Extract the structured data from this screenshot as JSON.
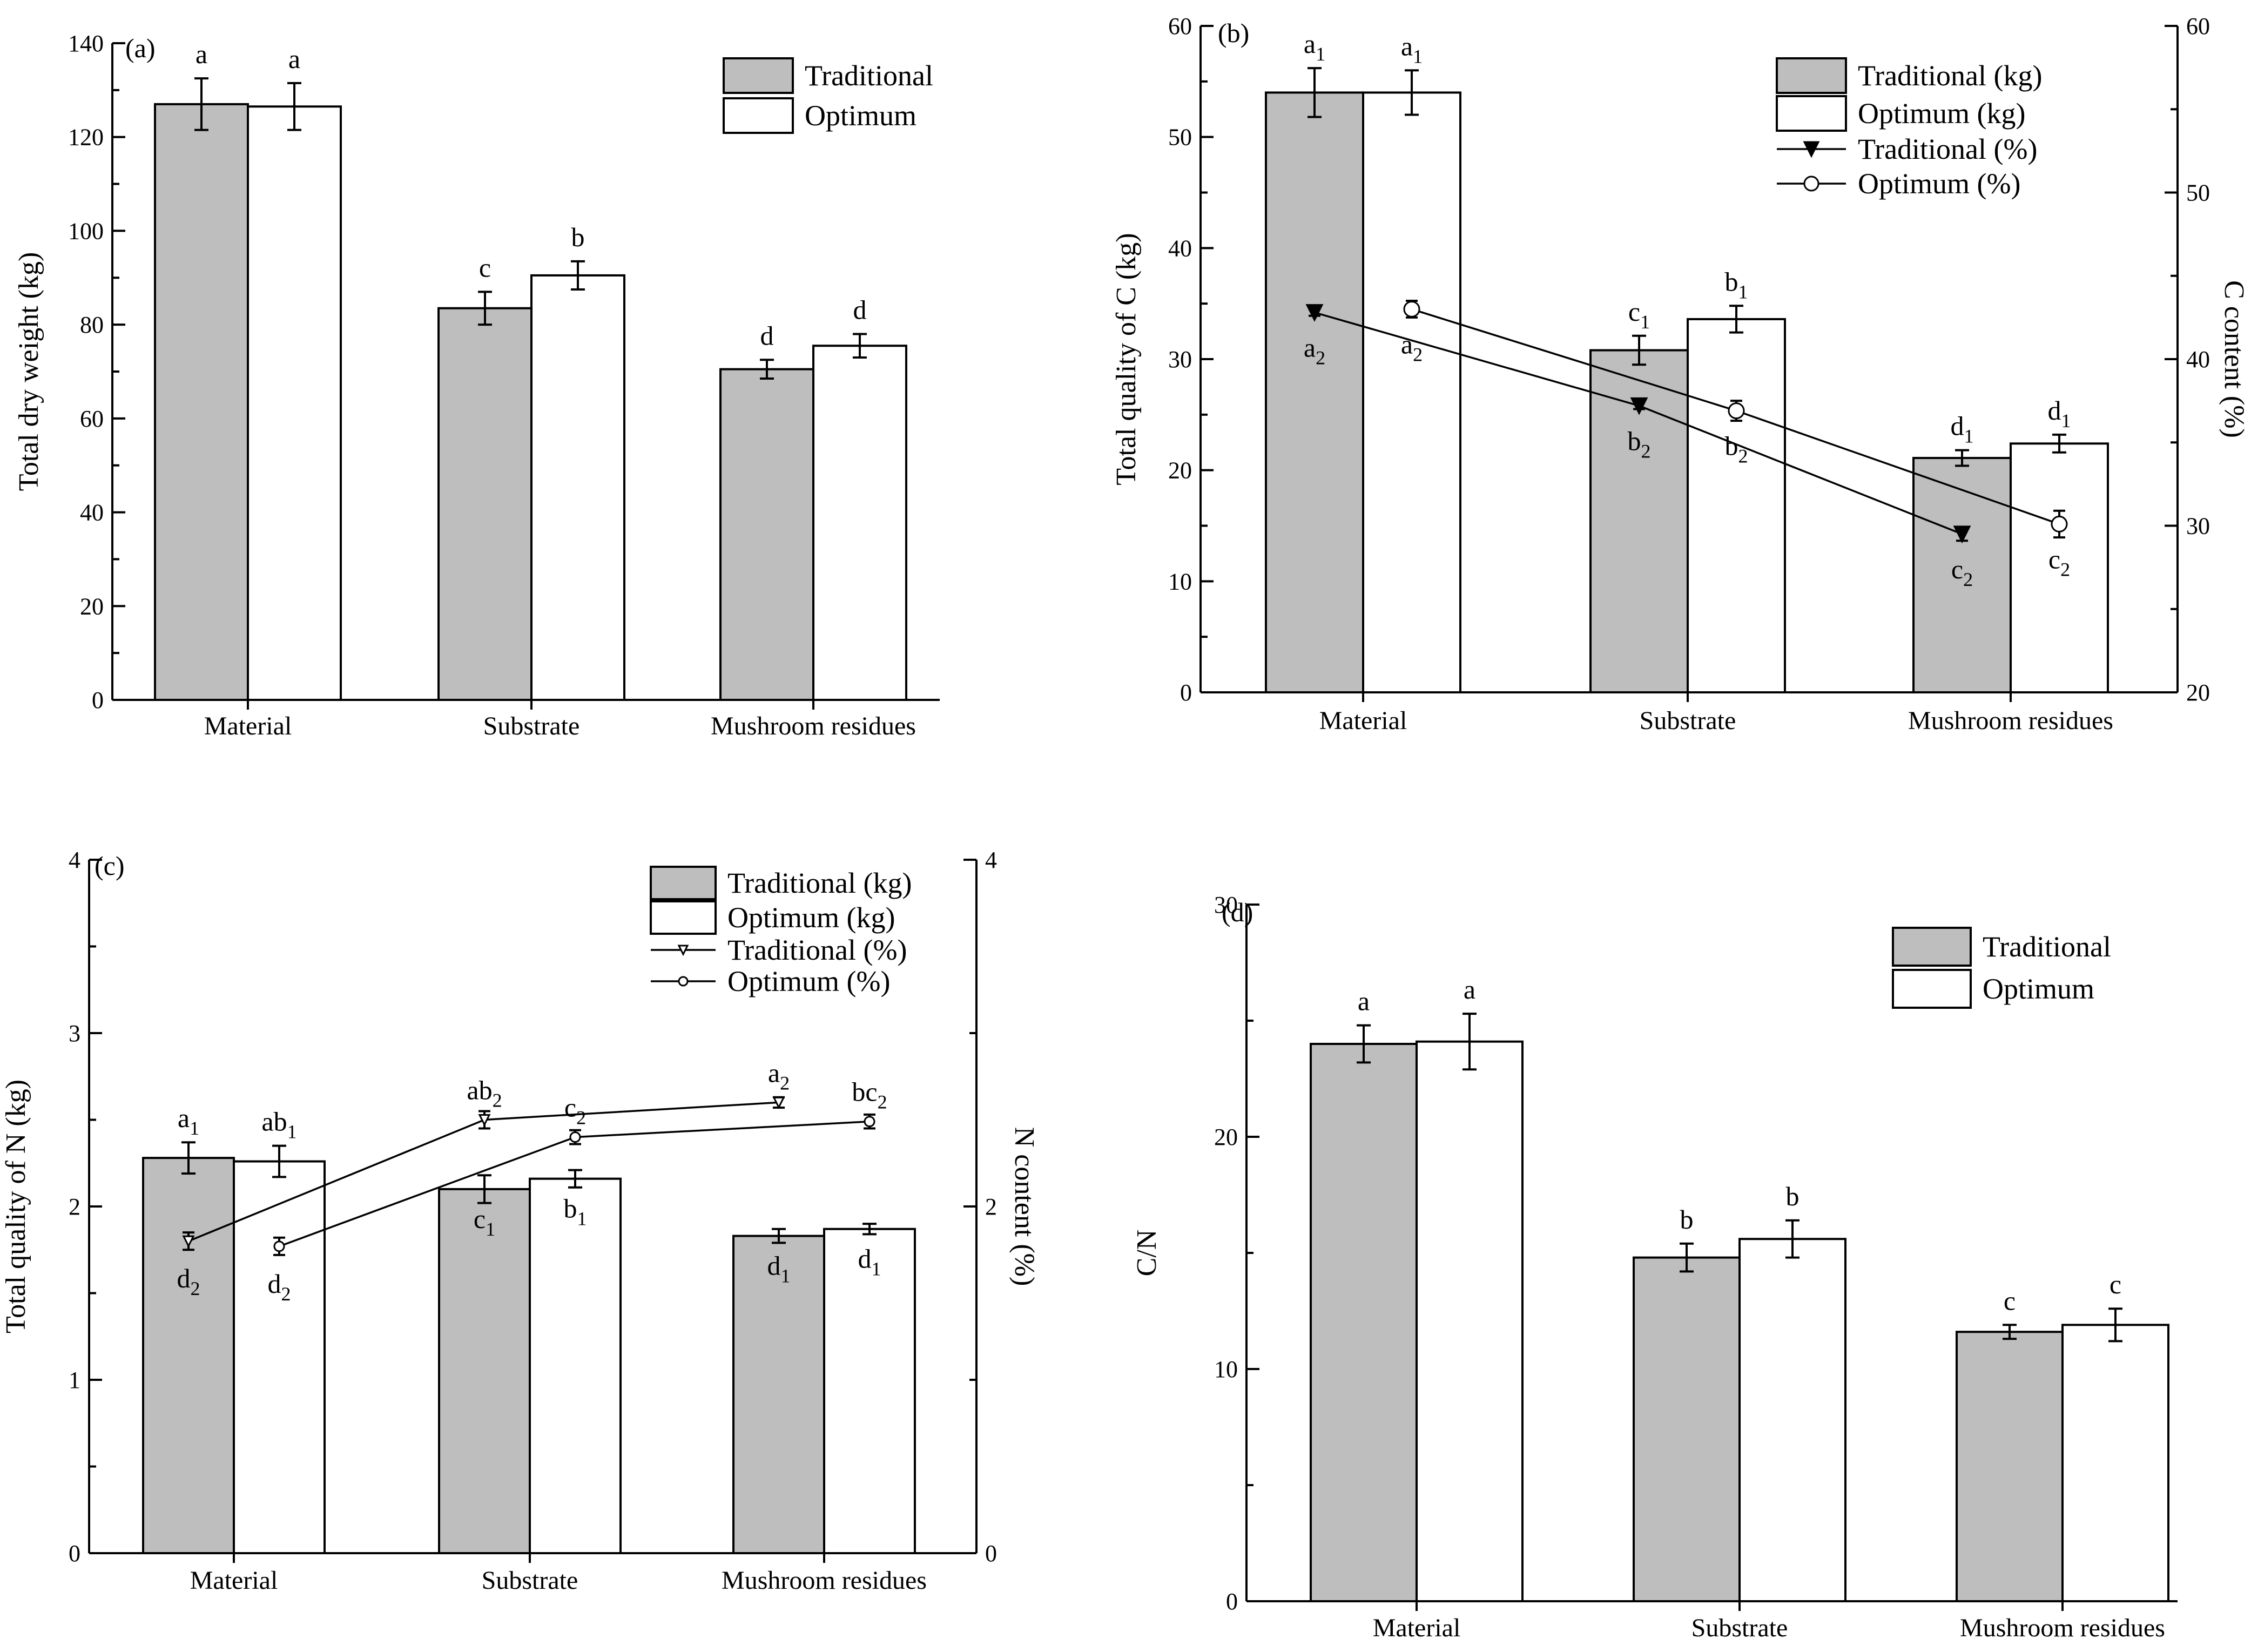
{
  "figure": {
    "colors": {
      "traditional_fill": "#bebebe",
      "optimum_fill": "#ffffff",
      "stroke": "#000000"
    }
  },
  "chart_data": [
    {
      "id": "a",
      "type": "bar",
      "panel_label": "(a)",
      "ylabel": "Total dry weight (kg)",
      "ylim": [
        0,
        140
      ],
      "yticks": [
        0,
        20,
        40,
        60,
        80,
        100,
        120,
        140
      ],
      "categories": [
        "Material",
        "Substrate",
        "Mushroom residues"
      ],
      "legend_position": "top-right",
      "series": [
        {
          "name": "Traditional",
          "fill": "#bebebe",
          "values": [
            127,
            83.5,
            70.5
          ],
          "errors": [
            5.5,
            3.5,
            2.0
          ],
          "labels": [
            "a",
            "c",
            "d"
          ]
        },
        {
          "name": "Optimum",
          "fill": "#ffffff",
          "values": [
            126.5,
            90.5,
            75.5
          ],
          "errors": [
            5.0,
            3.0,
            2.5
          ],
          "labels": [
            "a",
            "b",
            "d"
          ]
        }
      ]
    },
    {
      "id": "b",
      "type": "bar",
      "panel_label": "(b)",
      "ylabel": "Total quality of C (kg)",
      "ylim": [
        0,
        60
      ],
      "yticks": [
        0,
        10,
        20,
        30,
        40,
        50,
        60
      ],
      "y2label": "C content  (%)",
      "y2lim": [
        20,
        60
      ],
      "y2ticks": [
        20,
        30,
        40,
        50,
        60
      ],
      "categories": [
        "Material",
        "Substrate",
        "Mushroom residues"
      ],
      "legend_position": "top-right",
      "series": [
        {
          "name": "Traditional (kg)",
          "fill": "#bebebe",
          "values": [
            54,
            30.8,
            21.1
          ],
          "errors": [
            2.2,
            1.3,
            0.7
          ],
          "labels": [
            [
              "a",
              "1"
            ],
            [
              "c",
              "1"
            ],
            [
              "d",
              "1"
            ]
          ]
        },
        {
          "name": "Optimum (kg)",
          "fill": "#ffffff",
          "values": [
            54,
            33.6,
            22.4
          ],
          "errors": [
            2.0,
            1.2,
            0.8
          ],
          "labels": [
            [
              "a",
              "1"
            ],
            [
              "b",
              "1"
            ],
            [
              "d",
              "1"
            ]
          ]
        }
      ],
      "line_series": [
        {
          "name": "Traditional (%)",
          "marker": "triangle-down-filled",
          "values": [
            42.8,
            37.2,
            29.5
          ],
          "errors": [
            0.2,
            0.2,
            0.4
          ],
          "labels": [
            [
              "a",
              "2"
            ],
            [
              "b",
              "2"
            ],
            [
              "c",
              "2"
            ]
          ]
        },
        {
          "name": "Optimum (%)",
          "marker": "circle-open",
          "values": [
            43.0,
            36.9,
            30.1
          ],
          "errors": [
            0.5,
            0.6,
            0.8
          ],
          "labels": [
            [
              "a",
              "2"
            ],
            [
              "b",
              "2"
            ],
            [
              "c",
              "2"
            ]
          ]
        }
      ]
    },
    {
      "id": "c",
      "type": "bar",
      "panel_label": "(c)",
      "ylabel": "Total quality of N (kg)",
      "ylim": [
        0,
        4
      ],
      "yticks": [
        0,
        1,
        2,
        3,
        4
      ],
      "y2label": "N content (%)",
      "y2lim": [
        0,
        4
      ],
      "y2ticks": [
        0,
        2,
        4
      ],
      "categories": [
        "Material",
        "Substrate",
        "Mushroom residues"
      ],
      "legend_position": "top-right",
      "series": [
        {
          "name": "Traditional (kg)",
          "fill": "#bebebe",
          "values": [
            2.28,
            2.1,
            1.83
          ],
          "errors": [
            0.09,
            0.08,
            0.04
          ],
          "labels": [
            [
              "a",
              "1"
            ],
            [
              "c",
              "1"
            ],
            [
              "d",
              "1"
            ]
          ]
        },
        {
          "name": "Optimum (kg)",
          "fill": "#ffffff",
          "values": [
            2.26,
            2.16,
            1.87
          ],
          "errors": [
            0.09,
            0.05,
            0.03
          ],
          "labels": [
            [
              "ab",
              "1"
            ],
            [
              "b",
              "1"
            ],
            [
              "d",
              "1"
            ]
          ]
        }
      ],
      "line_series": [
        {
          "name": "Traditional (%)",
          "marker": "triangle-down-open",
          "values": [
            1.8,
            2.5,
            2.6
          ],
          "errors": [
            0.05,
            0.05,
            0.03
          ],
          "labels": [
            [
              "d",
              "2"
            ],
            [
              "ab",
              "2"
            ],
            [
              "a",
              "2"
            ]
          ]
        },
        {
          "name": "Optimum (%)",
          "marker": "circle-open",
          "values": [
            1.77,
            2.4,
            2.49
          ],
          "errors": [
            0.05,
            0.04,
            0.04
          ],
          "labels": [
            [
              "d",
              "2"
            ],
            [
              "c",
              "2"
            ],
            [
              "bc",
              "2"
            ]
          ]
        }
      ]
    },
    {
      "id": "d",
      "type": "bar",
      "panel_label": "(d)",
      "ylabel": "C/N",
      "ylim": [
        0,
        30
      ],
      "yticks": [
        0,
        10,
        20,
        30
      ],
      "categories": [
        "Material",
        "Substrate",
        "Mushroom residues"
      ],
      "legend_position": "top-right",
      "series": [
        {
          "name": "Traditional",
          "fill": "#bebebe",
          "values": [
            24,
            14.8,
            11.6
          ],
          "errors": [
            0.8,
            0.6,
            0.3
          ],
          "labels": [
            "a",
            "b",
            "c"
          ]
        },
        {
          "name": "Optimum",
          "fill": "#ffffff",
          "values": [
            24.1,
            15.6,
            11.9
          ],
          "errors": [
            1.2,
            0.8,
            0.7
          ],
          "labels": [
            "a",
            "b",
            "c"
          ]
        }
      ]
    }
  ]
}
